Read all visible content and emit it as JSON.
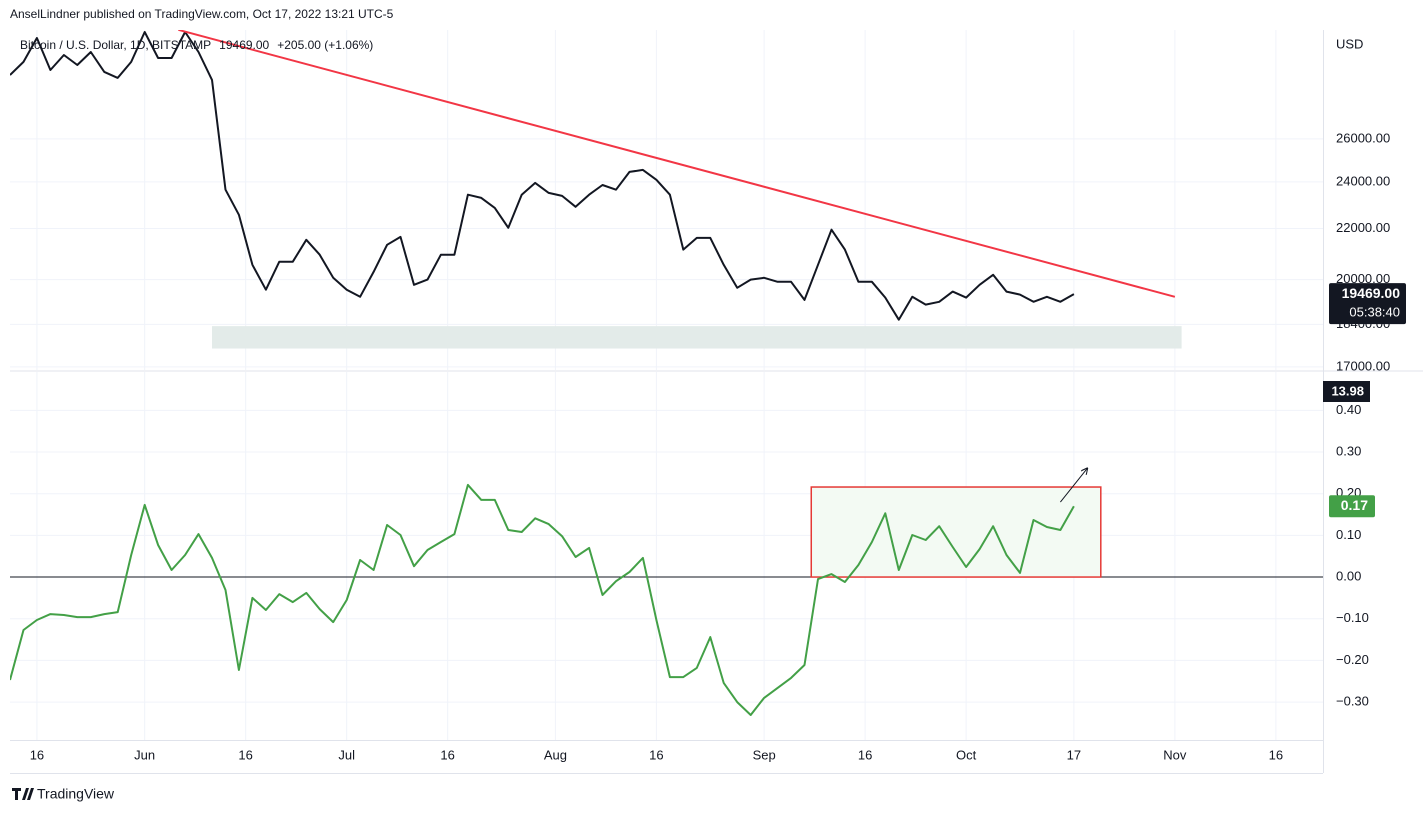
{
  "header": {
    "published": "AnselLindner published on TradingView.com, Oct 17, 2022 13:21 UTC-5"
  },
  "chart_data": [
    {
      "type": "line",
      "symbol": "Bitcoin / U.S. Dollar, 1D, BITSTAMP",
      "last_label": "19469.00",
      "change": "+205.00 (+1.06%)",
      "currency": "USD",
      "countdown": "05:38:40",
      "log_scale": true,
      "grid": true,
      "color": "#131722",
      "x": [
        "2022-05-12",
        "2022-05-14",
        "2022-05-16",
        "2022-05-18",
        "2022-05-20",
        "2022-05-22",
        "2022-05-24",
        "2022-05-26",
        "2022-05-28",
        "2022-05-30",
        "2022-06-01",
        "2022-06-03",
        "2022-06-05",
        "2022-06-07",
        "2022-06-09",
        "2022-06-11",
        "2022-06-13",
        "2022-06-15",
        "2022-06-17",
        "2022-06-19",
        "2022-06-21",
        "2022-06-23",
        "2022-06-25",
        "2022-06-27",
        "2022-06-29",
        "2022-07-01",
        "2022-07-03",
        "2022-07-05",
        "2022-07-07",
        "2022-07-09",
        "2022-07-11",
        "2022-07-13",
        "2022-07-15",
        "2022-07-17",
        "2022-07-19",
        "2022-07-21",
        "2022-07-23",
        "2022-07-25",
        "2022-07-27",
        "2022-07-29",
        "2022-07-31",
        "2022-08-02",
        "2022-08-04",
        "2022-08-06",
        "2022-08-08",
        "2022-08-10",
        "2022-08-12",
        "2022-08-14",
        "2022-08-16",
        "2022-08-18",
        "2022-08-20",
        "2022-08-22",
        "2022-08-24",
        "2022-08-26",
        "2022-08-28",
        "2022-08-30",
        "2022-09-01",
        "2022-09-03",
        "2022-09-05",
        "2022-09-07",
        "2022-09-09",
        "2022-09-11",
        "2022-09-13",
        "2022-09-15",
        "2022-09-17",
        "2022-09-19",
        "2022-09-21",
        "2022-09-23",
        "2022-09-25",
        "2022-09-27",
        "2022-09-29",
        "2022-10-01",
        "2022-10-03",
        "2022-10-05",
        "2022-10-07",
        "2022-10-09",
        "2022-10-11",
        "2022-10-13",
        "2022-10-15",
        "2022-10-17"
      ],
      "values": [
        29290,
        30010,
        31380,
        29560,
        30400,
        29840,
        30570,
        29460,
        29130,
        30010,
        31730,
        30230,
        30230,
        31730,
        30570,
        29020,
        23650,
        22570,
        20560,
        19630,
        20680,
        20680,
        21540,
        20950,
        20070,
        19630,
        19370,
        20290,
        21340,
        21660,
        19810,
        20000,
        20950,
        20950,
        23430,
        23290,
        22860,
        22030,
        23430,
        23950,
        23510,
        23380,
        22910,
        23430,
        23860,
        23650,
        24450,
        24540,
        24090,
        23430,
        21150,
        21620,
        21620,
        20560,
        19700,
        20000,
        20070,
        19920,
        19920,
        19260,
        20560,
        21950,
        21150,
        19920,
        19920,
        19340,
        18560,
        19370,
        19090,
        19190,
        19560,
        19340,
        19810,
        20180,
        19560,
        19450,
        19190,
        19370,
        19190,
        19469
      ],
      "xlim": [
        "2022-05-12",
        "2022-11-23"
      ],
      "ylim": [
        16900,
        31850
      ],
      "yticks": [
        {
          "value": 17000,
          "label": "17000.00"
        },
        {
          "value": 18400,
          "label": "18400.00"
        },
        {
          "value": 20000,
          "label": "20000.00"
        },
        {
          "value": 22000,
          "label": "22000.00"
        },
        {
          "value": 24000,
          "label": "24000.00"
        },
        {
          "value": 26000,
          "label": "26000.00"
        }
      ],
      "trendline": {
        "x": [
          "2022-06-06",
          "2022-11-01"
        ],
        "y": [
          31860,
          19370
        ],
        "color": "#f23645"
      },
      "zone": {
        "x": [
          "2022-06-11",
          "2022-11-02"
        ],
        "y": [
          17590,
          18340
        ],
        "color": "#e3ebe9"
      }
    },
    {
      "type": "line",
      "color": "#43a047",
      "grid": true,
      "last_label": "0.17",
      "indicator_label": "13.98",
      "x": [
        "2022-05-12",
        "2022-05-14",
        "2022-05-16",
        "2022-05-18",
        "2022-05-20",
        "2022-05-22",
        "2022-05-24",
        "2022-05-26",
        "2022-05-28",
        "2022-05-30",
        "2022-06-01",
        "2022-06-03",
        "2022-06-05",
        "2022-06-07",
        "2022-06-09",
        "2022-06-11",
        "2022-06-13",
        "2022-06-15",
        "2022-06-17",
        "2022-06-19",
        "2022-06-21",
        "2022-06-23",
        "2022-06-25",
        "2022-06-27",
        "2022-06-29",
        "2022-07-01",
        "2022-07-03",
        "2022-07-05",
        "2022-07-07",
        "2022-07-09",
        "2022-07-11",
        "2022-07-13",
        "2022-07-15",
        "2022-07-17",
        "2022-07-19",
        "2022-07-21",
        "2022-07-23",
        "2022-07-25",
        "2022-07-27",
        "2022-07-29",
        "2022-07-31",
        "2022-08-02",
        "2022-08-04",
        "2022-08-06",
        "2022-08-08",
        "2022-08-10",
        "2022-08-12",
        "2022-08-14",
        "2022-08-16",
        "2022-08-18",
        "2022-08-20",
        "2022-08-22",
        "2022-08-24",
        "2022-08-26",
        "2022-08-28",
        "2022-08-30",
        "2022-09-01",
        "2022-09-03",
        "2022-09-05",
        "2022-09-07",
        "2022-09-09",
        "2022-09-11",
        "2022-09-13",
        "2022-09-15",
        "2022-09-17",
        "2022-09-19",
        "2022-09-21",
        "2022-09-23",
        "2022-09-25",
        "2022-09-27",
        "2022-09-29",
        "2022-10-01",
        "2022-10-03",
        "2022-10-05",
        "2022-10-07",
        "2022-10-09",
        "2022-10-11",
        "2022-10-13",
        "2022-10-15",
        "2022-10-17"
      ],
      "values": [
        -0.247,
        -0.127,
        -0.103,
        -0.089,
        -0.091,
        -0.096,
        -0.096,
        -0.089,
        -0.084,
        0.053,
        0.173,
        0.077,
        0.017,
        0.053,
        0.103,
        0.046,
        -0.031,
        -0.223,
        -0.05,
        -0.079,
        -0.041,
        -0.06,
        -0.038,
        -0.077,
        -0.108,
        -0.055,
        0.041,
        0.017,
        0.125,
        0.101,
        0.026,
        0.065,
        0.084,
        0.103,
        0.221,
        0.185,
        0.185,
        0.113,
        0.108,
        0.141,
        0.127,
        0.098,
        0.048,
        0.07,
        -0.043,
        -0.01,
        0.012,
        0.046,
        -0.103,
        -0.24,
        -0.24,
        -0.218,
        -0.144,
        -0.254,
        -0.3,
        -0.331,
        -0.29,
        -0.266,
        -0.242,
        -0.211,
        -0.005,
        0.007,
        -0.012,
        0.029,
        0.084,
        0.153,
        0.017,
        0.101,
        0.089,
        0.122,
        0.072,
        0.024,
        0.067,
        0.122,
        0.053,
        0.01,
        0.137,
        0.12,
        0.113,
        0.17
      ],
      "xlim": [
        "2022-05-12",
        "2022-11-23"
      ],
      "ylim": [
        -0.391,
        0.492
      ],
      "yticks": [
        {
          "value": -0.3,
          "label": "−0.30"
        },
        {
          "value": -0.2,
          "label": "−0.20"
        },
        {
          "value": -0.1,
          "label": "−0.10"
        },
        {
          "value": 0,
          "label": "0.00"
        },
        {
          "value": 0.1,
          "label": "0.10"
        },
        {
          "value": 0.2,
          "label": "0.20"
        },
        {
          "value": 0.3,
          "label": "0.30"
        },
        {
          "value": 0.4,
          "label": "0.40"
        }
      ],
      "xticks": [
        {
          "value": "2022-05-16",
          "label": "16"
        },
        {
          "value": "2022-06-01",
          "label": "Jun"
        },
        {
          "value": "2022-06-16",
          "label": "16"
        },
        {
          "value": "2022-07-01",
          "label": "Jul"
        },
        {
          "value": "2022-07-16",
          "label": "16"
        },
        {
          "value": "2022-08-01",
          "label": "Aug"
        },
        {
          "value": "2022-08-16",
          "label": "16"
        },
        {
          "value": "2022-09-01",
          "label": "Sep"
        },
        {
          "value": "2022-09-16",
          "label": "16"
        },
        {
          "value": "2022-10-01",
          "label": "Oct"
        },
        {
          "value": "2022-10-17",
          "label": "17"
        },
        {
          "value": "2022-11-01",
          "label": "Nov"
        },
        {
          "value": "2022-11-16",
          "label": "16"
        }
      ],
      "box": {
        "x": [
          "2022-09-08",
          "2022-10-21"
        ],
        "y": [
          0,
          0.216
        ],
        "color": "#e53935"
      },
      "arrow": {
        "x": [
          "2022-10-15",
          "2022-10-19"
        ],
        "y": [
          0.18,
          0.261
        ]
      }
    }
  ],
  "footer": {
    "brand": "TradingView"
  }
}
